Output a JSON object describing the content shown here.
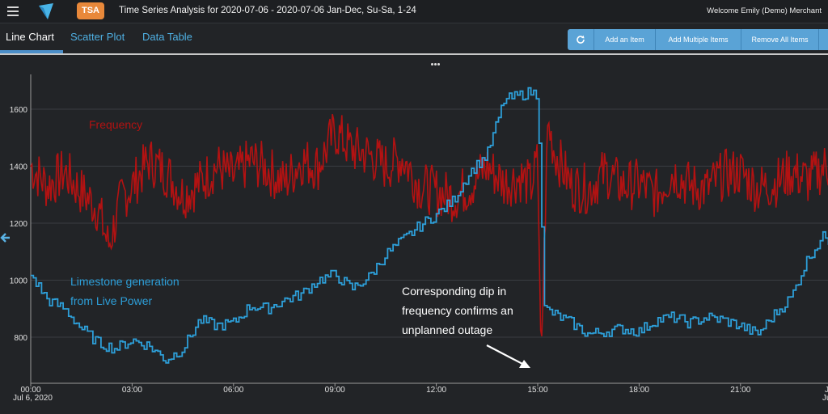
{
  "header": {
    "badge": "TSA",
    "title": "Time Series Analysis for 2020-07-06 - 2020-07-06 Jan-Dec, Su-Sa, 1-24",
    "welcome": "Welcome Emily (Demo) Merchant"
  },
  "tabs": [
    "Line Chart",
    "Scatter Plot",
    "Data Table"
  ],
  "toolbar": {
    "add_item": "Add an Item",
    "add_multiple": "Add Multiple Items",
    "remove_all": "Remove All Items"
  },
  "chart_data": {
    "type": "line",
    "annotations": {
      "frequency_label": "Frequency",
      "generation_label_line1": "Limestone generation",
      "generation_label_line2": "from Live Power",
      "note_line1": "Corresponding dip in",
      "note_line2": "frequency confirms an",
      "note_line3": "unplanned outage"
    },
    "x_tick_labels": [
      "00:00",
      "03:00",
      "06:00",
      "09:00",
      "12:00",
      "15:00",
      "18:00",
      "21:00",
      "J"
    ],
    "x_date_label": "Jul 6, 2020",
    "x_date_label_right": "Ju",
    "y_tick_labels": [
      "1600",
      "1400",
      "1200",
      "1000",
      "800"
    ],
    "y_ticks": [
      1600,
      1400,
      1200,
      1000,
      800
    ],
    "ylim": [
      700,
      1700
    ],
    "xlim_hours": [
      0,
      24
    ],
    "grid": true,
    "colors": {
      "frequency": "#b31212",
      "generation": "#2d9fd9",
      "annotation_text": "#ffffff"
    },
    "series": [
      {
        "x_hours": [
          0.0,
          0.5,
          1.0,
          1.5,
          2.0,
          2.3,
          2.7,
          3.0,
          3.5,
          4.0,
          4.5,
          5.0,
          5.5,
          6.0,
          6.5,
          7.0,
          7.5,
          8.0,
          8.5,
          9.0,
          9.5,
          10.0,
          10.5,
          11.0,
          11.5,
          12.0,
          12.5,
          13.0,
          13.5,
          14.0,
          14.5,
          14.8,
          15.0,
          15.1,
          15.3,
          15.5,
          16.0,
          16.5,
          17.0,
          17.5,
          18.0,
          18.5,
          19.0,
          19.5,
          20.0,
          20.5,
          21.0,
          21.5,
          22.0,
          22.5,
          23.0,
          23.5,
          24.0
        ],
        "values": [
          1400,
          1330,
          1380,
          1310,
          1250,
          1120,
          1290,
          1330,
          1420,
          1380,
          1300,
          1340,
          1400,
          1360,
          1420,
          1390,
          1340,
          1420,
          1400,
          1520,
          1460,
          1440,
          1400,
          1430,
          1330,
          1310,
          1290,
          1330,
          1400,
          1340,
          1360,
          1330,
          1420,
          720,
          1550,
          1450,
          1330,
          1320,
          1380,
          1330,
          1340,
          1300,
          1380,
          1330,
          1320,
          1370,
          1380,
          1320,
          1340,
          1380,
          1350,
          1400,
          1380
        ]
      },
      {
        "x_hours": [
          0.0,
          0.5,
          1.0,
          1.5,
          2.0,
          2.5,
          3.0,
          3.5,
          4.0,
          4.5,
          5.0,
          5.5,
          6.0,
          6.5,
          7.0,
          7.5,
          8.0,
          8.5,
          9.0,
          9.5,
          10.0,
          10.5,
          11.0,
          11.5,
          12.0,
          12.5,
          13.0,
          13.5,
          14.0,
          14.5,
          14.8,
          15.0,
          15.2,
          15.5,
          16.0,
          16.5,
          17.0,
          17.5,
          18.0,
          18.5,
          19.0,
          19.5,
          20.0,
          20.5,
          21.0,
          21.5,
          22.0,
          22.5,
          23.0,
          23.5,
          24.0
        ],
        "values": [
          1020,
          930,
          900,
          830,
          780,
          760,
          790,
          770,
          720,
          760,
          860,
          840,
          850,
          910,
          900,
          930,
          950,
          1000,
          1020,
          970,
          1010,
          1090,
          1140,
          1190,
          1230,
          1280,
          1380,
          1440,
          1630,
          1650,
          1660,
          1650,
          900,
          880,
          850,
          810,
          820,
          830,
          820,
          860,
          870,
          850,
          870,
          860,
          840,
          810,
          880,
          940,
          1080,
          1160,
          1070
        ]
      }
    ]
  }
}
